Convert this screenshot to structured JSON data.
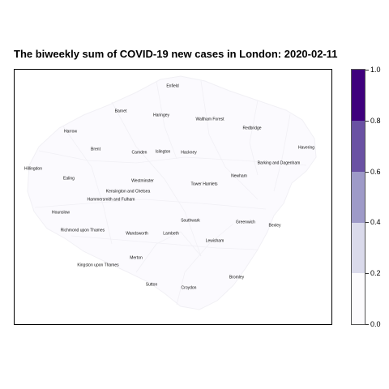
{
  "title": "The biweekly sum of COVID-19 new cases in London: 2020-02-11",
  "map": {
    "fill_color": "#fbfafe",
    "border_color": "#f1f0f5",
    "boroughs": [
      {
        "name": "Enfield",
        "value": 0
      },
      {
        "name": "Barnet",
        "value": 0
      },
      {
        "name": "Haringey",
        "value": 0
      },
      {
        "name": "Waltham Forest",
        "value": 0
      },
      {
        "name": "Redbridge",
        "value": 0
      },
      {
        "name": "Harrow",
        "value": 0
      },
      {
        "name": "Havering",
        "value": 0
      },
      {
        "name": "Brent",
        "value": 0
      },
      {
        "name": "Camden",
        "value": 0
      },
      {
        "name": "Islington",
        "value": 0
      },
      {
        "name": "Hackney",
        "value": 0
      },
      {
        "name": "Barking and Dagenham",
        "value": 0
      },
      {
        "name": "Hillingdon",
        "value": 0
      },
      {
        "name": "Newham",
        "value": 0
      },
      {
        "name": "Ealing",
        "value": 0
      },
      {
        "name": "Westminster",
        "value": 0
      },
      {
        "name": "Tower Hamlets",
        "value": 0
      },
      {
        "name": "Kensington and Chelsea",
        "value": 0
      },
      {
        "name": "Hammersmith and Fulham",
        "value": 0
      },
      {
        "name": "Hounslow",
        "value": 0
      },
      {
        "name": "Southwark",
        "value": 0
      },
      {
        "name": "Greenwich",
        "value": 0
      },
      {
        "name": "Bexley",
        "value": 0
      },
      {
        "name": "Richmond upon Thames",
        "value": 0
      },
      {
        "name": "Wandsworth",
        "value": 0
      },
      {
        "name": "Lambeth",
        "value": 0
      },
      {
        "name": "Lewisham",
        "value": 0
      },
      {
        "name": "Merton",
        "value": 0
      },
      {
        "name": "Kingston upon Thames",
        "value": 0
      },
      {
        "name": "Sutton",
        "value": 0
      },
      {
        "name": "Croydon",
        "value": 0
      },
      {
        "name": "Bromley",
        "value": 0
      }
    ]
  },
  "legend": {
    "min": 0,
    "max": 1,
    "ticks": [
      "0.0",
      "0.2",
      "0.4",
      "0.6",
      "0.8",
      "1.0"
    ],
    "bins": [
      {
        "from": 0.0,
        "to": 0.2,
        "color": "#fcfbfd"
      },
      {
        "from": 0.2,
        "to": 0.4,
        "color": "#dadaeb"
      },
      {
        "from": 0.4,
        "to": 0.6,
        "color": "#9e9ac8"
      },
      {
        "from": 0.6,
        "to": 0.8,
        "color": "#6a51a3"
      },
      {
        "from": 0.8,
        "to": 1.0,
        "color": "#3f007d"
      }
    ]
  }
}
